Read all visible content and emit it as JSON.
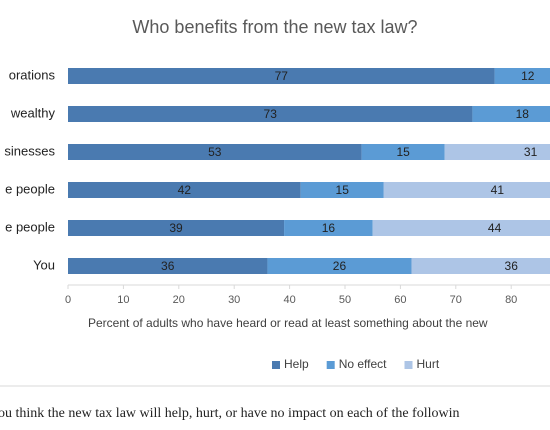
{
  "chart_data": {
    "type": "stacked-barh",
    "title": "Who benefits from the new tax law?",
    "categories": [
      "orations",
      "wealthy",
      "sinesses",
      "e people",
      "e people",
      "You"
    ],
    "series": [
      {
        "name": "Help",
        "color": "#4a7ab0",
        "values": [
          77,
          73,
          53,
          42,
          39,
          36
        ]
      },
      {
        "name": "No effect",
        "color": "#5b9bd5",
        "values": [
          12,
          18,
          15,
          15,
          16,
          26
        ]
      },
      {
        "name": "Hurt",
        "color": "#adc5e6",
        "values": [
          null,
          null,
          31,
          41,
          44,
          36
        ]
      }
    ],
    "xlim": [
      0,
      100
    ],
    "xticks": [
      0,
      10,
      20,
      30,
      40,
      50,
      60,
      70,
      80
    ],
    "xlabel": "Percent of adults who have heard or read at least something about the new",
    "legend": "bottom",
    "footnote": "ou think the new tax law will help, hurt, or have no impact on each of the followin"
  }
}
